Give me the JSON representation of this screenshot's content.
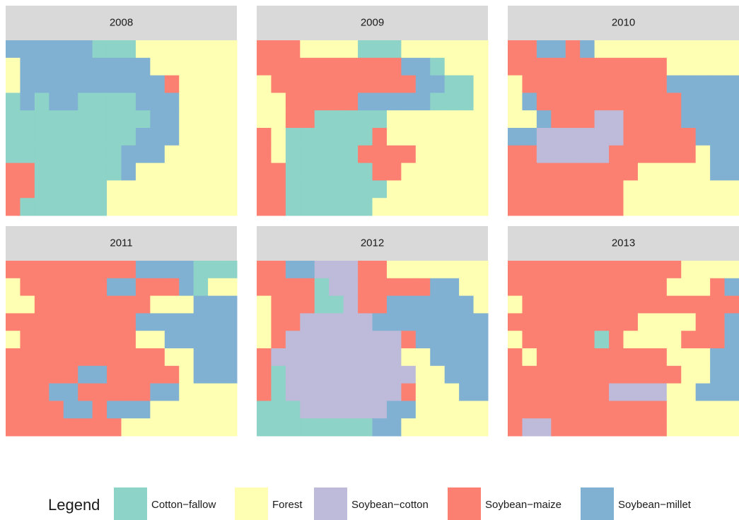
{
  "panels": [
    {
      "title": "2008"
    },
    {
      "title": "2009"
    },
    {
      "title": "2010"
    },
    {
      "title": "2011"
    },
    {
      "title": "2012"
    },
    {
      "title": "2013"
    }
  ],
  "legend": {
    "title": "Legend",
    "items": [
      {
        "label": "Cotton−fallow",
        "color": "#8dd3c7"
      },
      {
        "label": "Forest",
        "color": "#ffffb3"
      },
      {
        "label": "Soybean−cotton",
        "color": "#bebada"
      },
      {
        "label": "Soybean−maize",
        "color": "#fb8072"
      },
      {
        "label": "Soybean−millet",
        "color": "#80b1d3"
      }
    ]
  }
}
